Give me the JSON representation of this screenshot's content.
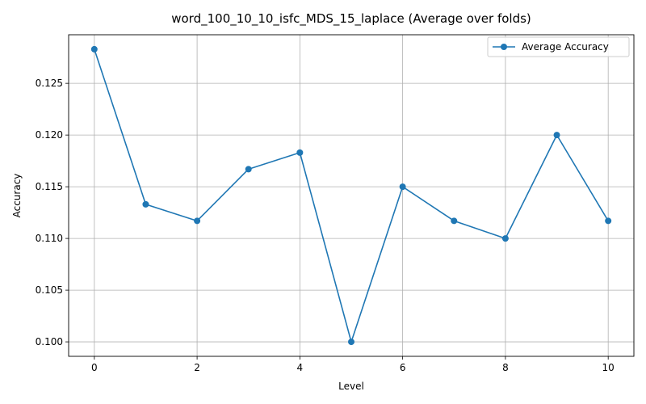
{
  "chart_data": {
    "type": "line",
    "title": "word_100_10_10_isfc_MDS_15_laplace (Average over folds)",
    "xlabel": "Level",
    "ylabel": "Accuracy",
    "xlim": [
      -0.5,
      10.5
    ],
    "ylim": [
      0.0986,
      0.1297
    ],
    "xticks": [
      0,
      2,
      4,
      6,
      8,
      10
    ],
    "xtick_labels": [
      "0",
      "2",
      "4",
      "6",
      "8",
      "10"
    ],
    "yticks": [
      0.1,
      0.105,
      0.11,
      0.115,
      0.12,
      0.125
    ],
    "ytick_labels": [
      "0.100",
      "0.105",
      "0.110",
      "0.115",
      "0.120",
      "0.125"
    ],
    "grid": true,
    "legend_position": "top-right",
    "series": [
      {
        "name": "Average Accuracy",
        "color": "#1f77b4",
        "marker": "circle",
        "x": [
          0,
          1,
          2,
          3,
          4,
          5,
          6,
          7,
          8,
          9,
          10
        ],
        "y": [
          0.1283,
          0.1133,
          0.1117,
          0.1167,
          0.1183,
          0.1,
          0.115,
          0.1117,
          0.11,
          0.12,
          0.1117
        ]
      }
    ]
  }
}
